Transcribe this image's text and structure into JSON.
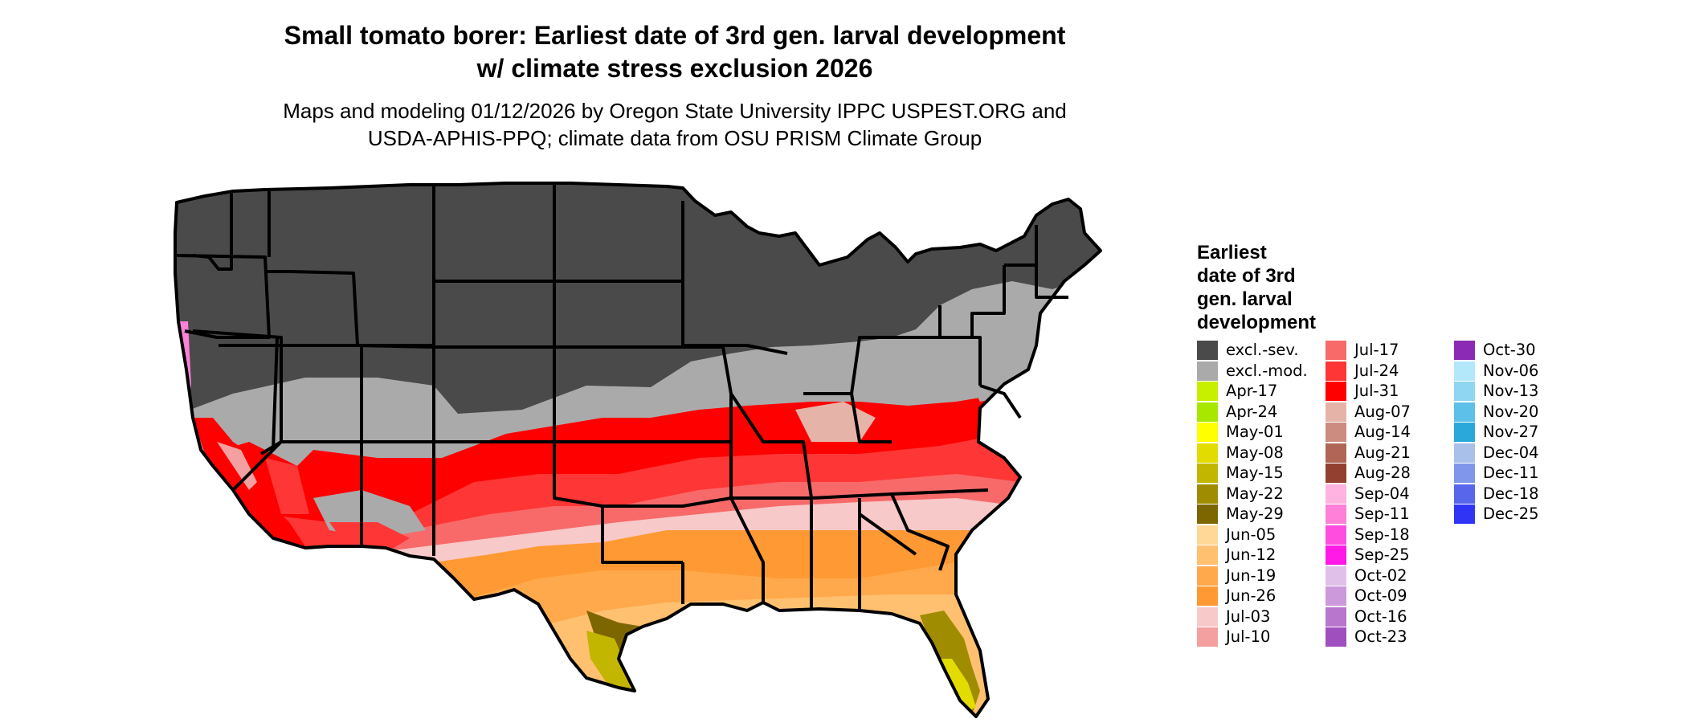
{
  "title_line1": "Small tomato borer: Earliest date of 3rd gen. larval development",
  "title_line2": "w/ climate stress exclusion 2026",
  "subtitle_line1": "Maps and modeling 01/12/2026 by Oregon State University IPPC USPEST.ORG and",
  "subtitle_line2": "USDA-APHIS-PPQ; climate data from OSU PRISM Climate Group",
  "legend": {
    "title": [
      "Earliest",
      "date of 3rd",
      "gen. larval",
      "development"
    ],
    "columns": [
      [
        {
          "label": "excl.-sev.",
          "color": "#4a4a4a"
        },
        {
          "label": "excl.-mod.",
          "color": "#aaaaaa"
        },
        {
          "label": "Apr-17",
          "color": "#c6f000"
        },
        {
          "label": "Apr-24",
          "color": "#a8e800"
        },
        {
          "label": "May-01",
          "color": "#ffff00"
        },
        {
          "label": "May-08",
          "color": "#e2dc00"
        },
        {
          "label": "May-15",
          "color": "#c2b600"
        },
        {
          "label": "May-22",
          "color": "#a08c00"
        },
        {
          "label": "May-29",
          "color": "#7d6500"
        },
        {
          "label": "Jun-05",
          "color": "#ffd797"
        },
        {
          "label": "Jun-12",
          "color": "#ffc070"
        },
        {
          "label": "Jun-19",
          "color": "#ffa94c"
        },
        {
          "label": "Jun-26",
          "color": "#ff9933"
        },
        {
          "label": "Jul-03",
          "color": "#f7c9c9"
        },
        {
          "label": "Jul-10",
          "color": "#f4a0a0"
        }
      ],
      [
        {
          "label": "Jul-17",
          "color": "#f86a6a"
        },
        {
          "label": "Jul-24",
          "color": "#ff3636"
        },
        {
          "label": "Jul-31",
          "color": "#ff0000"
        },
        {
          "label": "Aug-07",
          "color": "#e6b3a8"
        },
        {
          "label": "Aug-14",
          "color": "#cc8c80"
        },
        {
          "label": "Aug-21",
          "color": "#b06656"
        },
        {
          "label": "Aug-28",
          "color": "#944030"
        },
        {
          "label": "Sep-04",
          "color": "#ffb3e0"
        },
        {
          "label": "Sep-11",
          "color": "#ff80d8"
        },
        {
          "label": "Sep-18",
          "color": "#ff4de0"
        },
        {
          "label": "Sep-25",
          "color": "#ff1ae8"
        },
        {
          "label": "Oct-02",
          "color": "#e0c0e8"
        },
        {
          "label": "Oct-09",
          "color": "#cc99db"
        },
        {
          "label": "Oct-16",
          "color": "#b876cc"
        },
        {
          "label": "Oct-23",
          "color": "#a04fbf"
        }
      ],
      [
        {
          "label": "Oct-30",
          "color": "#8b2bb3"
        },
        {
          "label": "Nov-06",
          "color": "#b3e8fa"
        },
        {
          "label": "Nov-13",
          "color": "#8fd6f2"
        },
        {
          "label": "Nov-20",
          "color": "#5cc0e8"
        },
        {
          "label": "Nov-27",
          "color": "#2aa8da"
        },
        {
          "label": "Dec-04",
          "color": "#a8c0ea"
        },
        {
          "label": "Dec-11",
          "color": "#7f96ea"
        },
        {
          "label": "Dec-18",
          "color": "#5866ec"
        },
        {
          "label": "Dec-25",
          "color": "#3034f4"
        }
      ]
    ]
  },
  "map_colors": {
    "excluded_severe": "#4a4a4a",
    "excluded_moderate": "#aaaaaa",
    "jul31": "#ff0000",
    "jul24": "#ff3636",
    "jul17": "#f86a6a",
    "jul10": "#f4a0a0",
    "jul03": "#f7c9c9",
    "aug07": "#e6b3a8",
    "jun26": "#ff9933",
    "jun19": "#ffa94c",
    "jun12": "#ffc070",
    "jun05": "#ffd797",
    "may29": "#7d6500",
    "may22": "#a08c00",
    "may15": "#c2b600",
    "may08": "#e2dc00",
    "oct16": "#b876cc",
    "sep11": "#ff80d8",
    "border": "#000000"
  }
}
